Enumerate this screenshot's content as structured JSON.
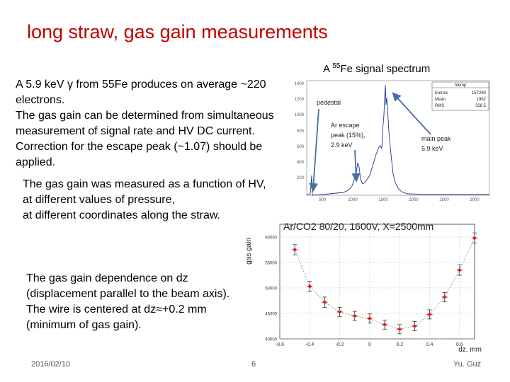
{
  "slide": {
    "title": "long straw, gas gain measurements",
    "spectrum_caption": {
      "prefix": "A ",
      "isotope_mass": "55",
      "rest": "Fe signal spectrum"
    },
    "intro_lines": [
      "A 5.9 keV γ from 55Fe produces on average ~220",
      "electrons.",
      "The gas gain can be determined from simultaneous",
      "measurement of signal rate and HV DC current.",
      "Correction for the escape peak (~1.07) should be",
      "applied."
    ],
    "measurement_lines": [
      "The gas gain was measured as a function of HV,",
      "at different values of pressure,",
      "at different coordinates along the straw."
    ],
    "dz_lines": [
      "The gas gain dependence on dz",
      "(displacement parallel to the beam axis).",
      "The wire is centered at dz≈+0.2 mm",
      "(minimum of gas gain)."
    ],
    "footer": {
      "date": "2016/02/10",
      "page": "6",
      "author": "Yu. Guz"
    }
  },
  "spectrum": {
    "y_ticks": [
      "1400",
      "1200",
      "1000",
      "800",
      "600",
      "400",
      "200"
    ],
    "x_ticks": [
      "500",
      "1000",
      "1500",
      "2000",
      "2500",
      "3000"
    ],
    "stats": {
      "name": "htemp",
      "rows": [
        [
          "Entries",
          "157294"
        ],
        [
          "Mean",
          "1962"
        ],
        [
          "RMS",
          "328.5"
        ]
      ]
    },
    "annotations": {
      "pedestal": "pedestal",
      "escape": [
        "Ar escape",
        "peak (15%),",
        "2.9 keV"
      ],
      "main": [
        "main peak",
        "5.9 keV"
      ]
    },
    "colors": {
      "arrow": "#4a6fa5",
      "histogram": "#1a3a8a"
    }
  },
  "chart_data": {
    "type": "scatter",
    "title": "Ar/CO2 80/20, 1600V, X=2500mm",
    "xlabel": "dz, mm",
    "ylabel": "gas gain",
    "xlim": [
      -0.6,
      0.7
    ],
    "ylim": [
      40000,
      62500
    ],
    "x_ticks": [
      "-0.6",
      "-0.4",
      "-0.2",
      "0",
      "0.2",
      "0.4",
      "0.6"
    ],
    "y_ticks": [
      "40000",
      "45000",
      "50000",
      "55000",
      "60000"
    ],
    "grid": true,
    "points": [
      {
        "x": -0.5,
        "y": 57500,
        "err": 1000
      },
      {
        "x": -0.4,
        "y": 50300,
        "err": 1000
      },
      {
        "x": -0.3,
        "y": 47200,
        "err": 1000
      },
      {
        "x": -0.2,
        "y": 45300,
        "err": 900
      },
      {
        "x": -0.1,
        "y": 44500,
        "err": 900
      },
      {
        "x": 0.0,
        "y": 44000,
        "err": 900
      },
      {
        "x": 0.1,
        "y": 42800,
        "err": 900
      },
      {
        "x": 0.2,
        "y": 41900,
        "err": 900
      },
      {
        "x": 0.3,
        "y": 42500,
        "err": 900
      },
      {
        "x": 0.4,
        "y": 44800,
        "err": 900
      },
      {
        "x": 0.5,
        "y": 48200,
        "err": 900
      },
      {
        "x": 0.6,
        "y": 53500,
        "err": 1000
      },
      {
        "x": 0.7,
        "y": 59800,
        "err": 1000
      }
    ],
    "colors": {
      "marker": "#e11d1d",
      "line": "#888888"
    }
  }
}
